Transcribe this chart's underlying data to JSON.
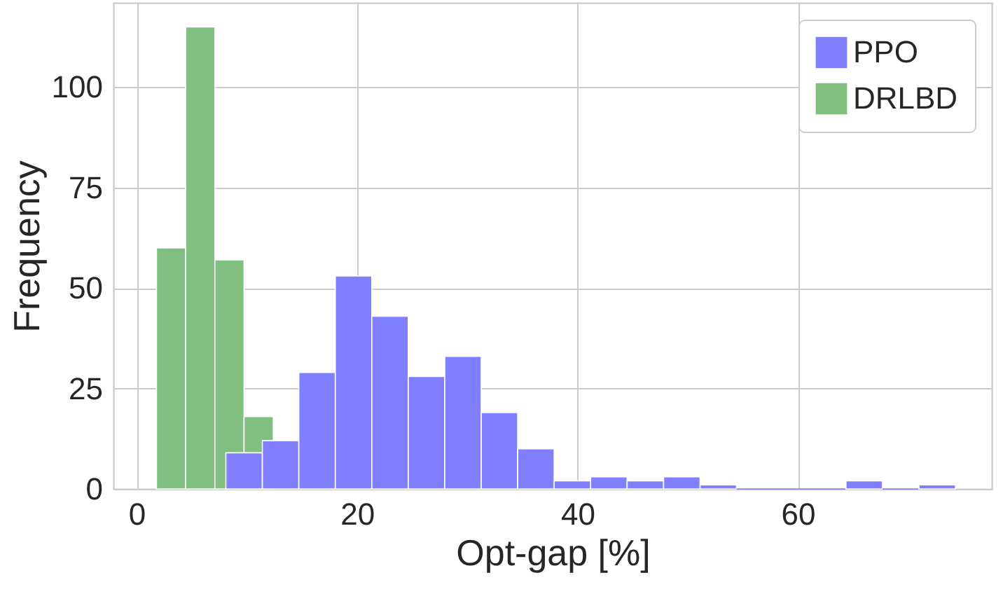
{
  "chart_data": {
    "type": "histogram",
    "xlabel": "Opt-gap [%]",
    "ylabel": "Frequency",
    "bins": [
      8.1,
      11.41,
      14.72,
      18.03,
      21.34,
      24.65,
      27.96,
      31.27,
      34.58,
      37.89,
      41.2,
      44.51,
      47.82,
      51.13,
      54.44,
      57.75,
      61.06,
      64.37,
      67.68,
      70.99,
      74.3
    ],
    "series": [
      {
        "name": "PPO",
        "color": "#8080ff",
        "values": [
          9,
          12,
          29,
          53,
          43,
          28,
          33,
          19,
          10,
          2,
          3,
          2,
          3,
          1,
          0,
          0,
          0,
          2,
          0,
          1
        ]
      },
      {
        "name": "DRLBD",
        "color": "#80bf80",
        "bins": [
          1.8,
          4.45,
          7.1,
          9.75,
          12.4
        ],
        "values": [
          60,
          115,
          57,
          18
        ]
      }
    ],
    "xlim": [
      -2.1,
      77.6
    ],
    "ylim": [
      0,
      121
    ],
    "xticks": [
      0,
      20,
      40,
      60
    ],
    "yticks": [
      0,
      25,
      50,
      75,
      100
    ],
    "grid": true,
    "legend": "top right"
  }
}
